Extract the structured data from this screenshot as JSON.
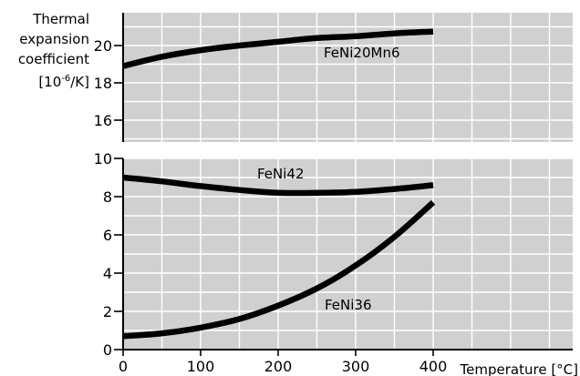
{
  "chart_data": [
    {
      "type": "line",
      "panel": "top",
      "ylabel": {
        "line1": "Thermal",
        "line2": "expansion",
        "line3": "coefficient",
        "unit_prefix": "[10",
        "unit_exp": "-6",
        "unit_suffix": "/K]"
      },
      "ylim": [
        15,
        21.8
      ],
      "yticks": [
        16,
        18,
        20
      ],
      "xlim": [
        0,
        580
      ],
      "grid": true,
      "series": [
        {
          "name": "FeNi20Mn6",
          "x": [
            0,
            50,
            100,
            150,
            200,
            250,
            300,
            350,
            400
          ],
          "y": [
            18.9,
            19.4,
            19.75,
            20.0,
            20.2,
            20.4,
            20.5,
            20.65,
            20.75
          ]
        }
      ]
    },
    {
      "type": "line",
      "panel": "bottom",
      "xlabel": "Temperature [°C]",
      "xlim": [
        0,
        580
      ],
      "xticks": [
        0,
        100,
        200,
        300,
        400
      ],
      "ylim": [
        0,
        10
      ],
      "yticks": [
        0,
        2,
        4,
        6,
        8,
        10
      ],
      "grid": true,
      "series": [
        {
          "name": "FeNi42",
          "x": [
            0,
            50,
            100,
            150,
            200,
            250,
            300,
            350,
            400
          ],
          "y": [
            9.0,
            8.8,
            8.55,
            8.35,
            8.2,
            8.2,
            8.25,
            8.4,
            8.6
          ]
        },
        {
          "name": "FeNi36",
          "x": [
            0,
            50,
            100,
            150,
            200,
            250,
            300,
            350,
            400
          ],
          "y": [
            0.7,
            0.85,
            1.15,
            1.6,
            2.3,
            3.2,
            4.4,
            5.9,
            7.7
          ]
        }
      ]
    }
  ]
}
